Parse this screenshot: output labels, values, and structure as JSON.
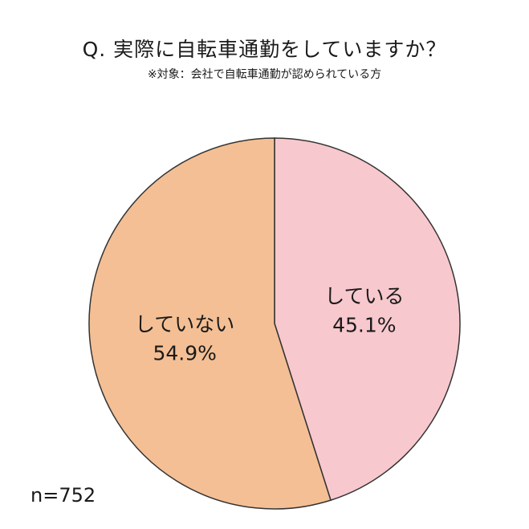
{
  "title": "Q. 実際に自転車通勤をしていますか？",
  "subtitle": "※対象：会社で自転車通勤が認められている方",
  "sample_size": "n=752",
  "colors": {
    "している": "#f7c8cd",
    "していない": "#f4bf94",
    "stroke": "#333333"
  },
  "chart_data": {
    "type": "pie",
    "title": "Q. 実際に自転車通勤をしていますか？",
    "subtitle": "※対象：会社で自転車通勤が認められている方",
    "labels": [
      "している",
      "していない"
    ],
    "values": [
      45.1,
      54.9
    ],
    "value_labels": [
      "45.1%",
      "54.9%"
    ],
    "start": "12 o'clock",
    "direction": "clockwise",
    "legend": "none (labels inside slices)"
  }
}
